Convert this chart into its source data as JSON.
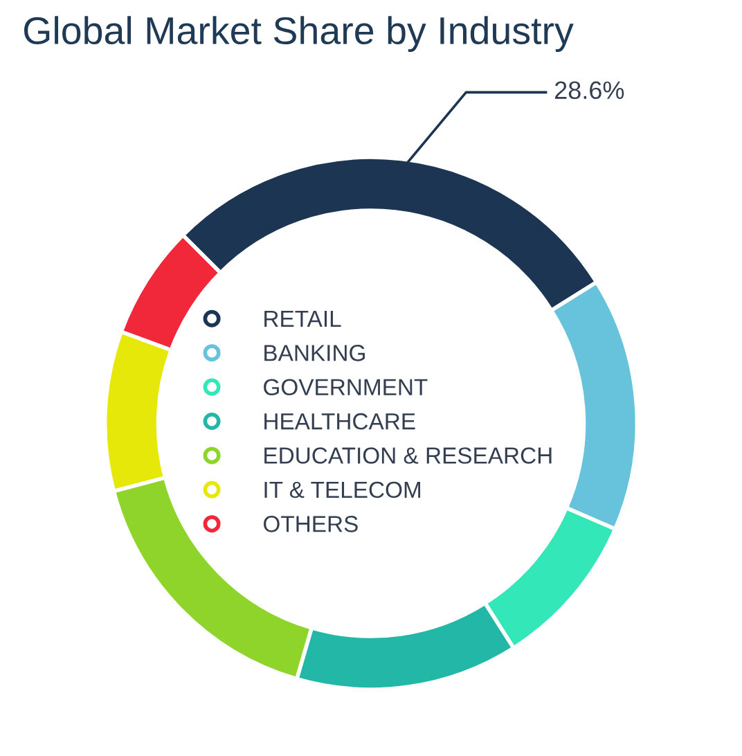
{
  "chart_data": {
    "type": "donut",
    "title": "Global Market Share by Industry",
    "categories": [
      "RETAIL",
      "BANKING",
      "GOVERNMENT",
      "HEALTHCARE",
      "EDUCATION & RESEARCH",
      "IT & TELECOM",
      "OTHERS"
    ],
    "values": [
      28.6,
      15.4,
      9.5,
      13.5,
      16.4,
      9.7,
      6.9
    ],
    "colors": [
      "#1b3553",
      "#67c2dc",
      "#34e7b8",
      "#22b7a6",
      "#8fd42a",
      "#e6e80a",
      "#f0283a"
    ],
    "value_labels": [
      "28.6%",
      null,
      null,
      null,
      null,
      null,
      null
    ],
    "legend": "center"
  }
}
